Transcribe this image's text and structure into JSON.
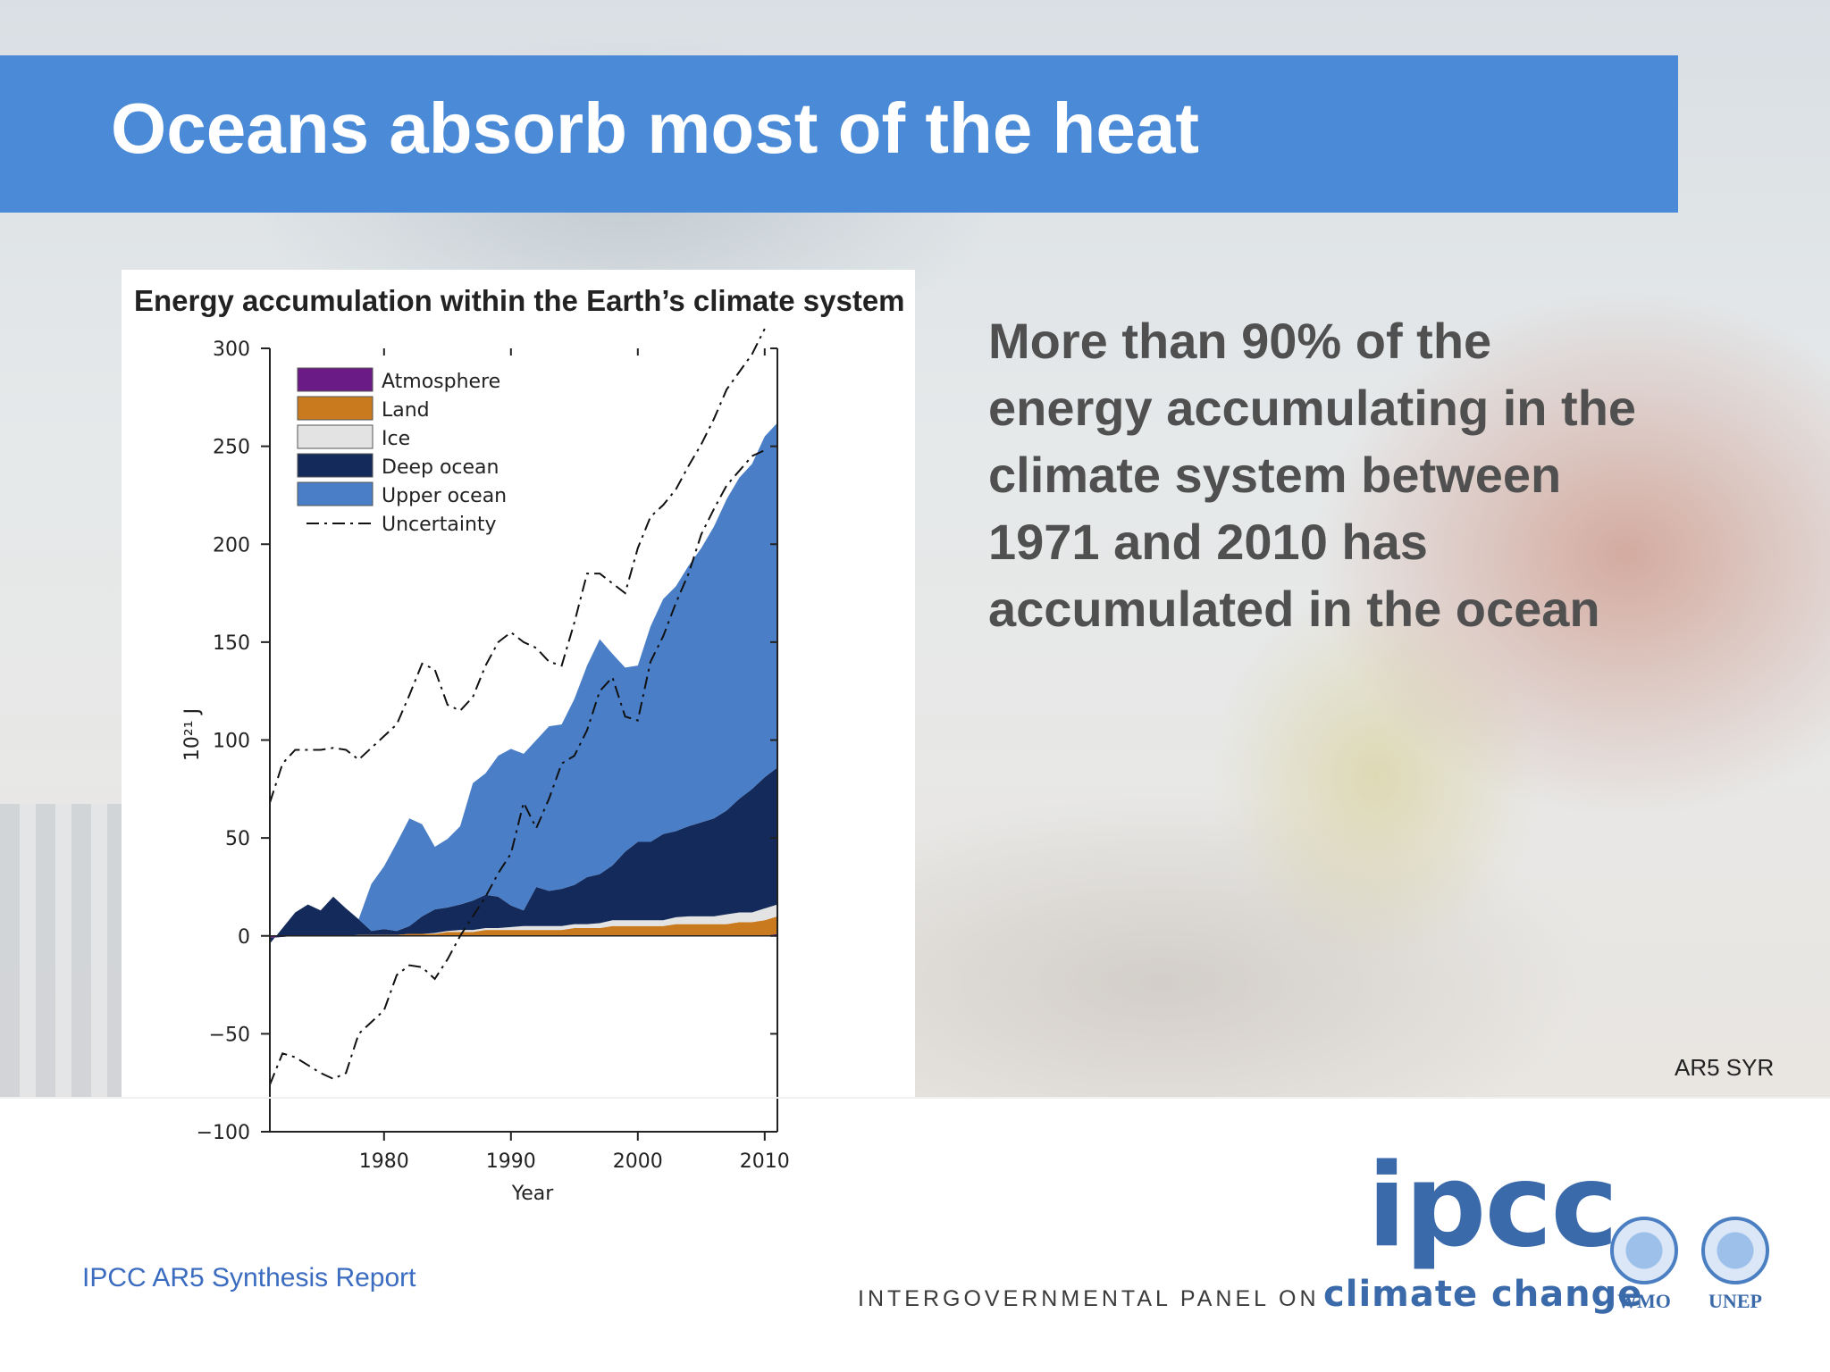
{
  "slide": {
    "title": "Oceans absorb most of the heat",
    "body": "More than 90% of the energy accumulating in the climate system between 1971 and 2010 has accumulated in the ocean",
    "source_tag": "AR5 SYR",
    "footer": "IPCC AR5 Synthesis Report"
  },
  "logo": {
    "word": "ipcc",
    "line_small": "INTERGOVERNMENTAL PANEL ON",
    "line_big": "climate change",
    "partners": [
      "WMO",
      "UNEP"
    ]
  },
  "colors": {
    "header": "#4a8ad6",
    "upper_ocean": "#4a7fc8",
    "deep_ocean": "#142a5a",
    "ice": "#e3e3e3",
    "land": "#c97a1f",
    "atmosphere": "#6a1b86"
  },
  "chart_data": {
    "type": "area",
    "stacked": true,
    "title": "Energy accumulation within the Earth’s climate system",
    "xlabel": "Year",
    "ylabel": "10²¹ J",
    "xlim": [
      1971,
      2011
    ],
    "ylim": [
      -100,
      300
    ],
    "xticks": [
      1980,
      1990,
      2000,
      2010
    ],
    "yticks": [
      -100,
      -50,
      0,
      50,
      100,
      150,
      200,
      250,
      300
    ],
    "legend_position": "top-left",
    "x": [
      1971,
      1973,
      1974,
      1975,
      1976,
      1977,
      1978,
      1979,
      1980,
      1981,
      1982,
      1983,
      1984,
      1985,
      1986,
      1987,
      1988,
      1989,
      1990,
      1991,
      1992,
      1993,
      1994,
      1995,
      1996,
      1997,
      1998,
      1999,
      2000,
      2001,
      2002,
      2003,
      2004,
      2005,
      2006,
      2007,
      2008,
      2009,
      2010,
      2011
    ],
    "series": [
      {
        "name": "Atmosphere",
        "color": "#6a1b86",
        "values": [
          -1,
          0,
          0,
          0,
          0,
          0,
          0,
          0,
          0,
          0,
          0,
          0,
          0,
          0,
          0,
          0,
          0,
          0,
          0,
          0,
          0,
          0,
          0,
          0,
          0,
          0,
          0,
          0,
          0,
          0,
          0,
          0,
          0,
          0,
          0,
          0,
          0,
          0,
          0,
          1
        ]
      },
      {
        "name": "Land",
        "color": "#c97a1f",
        "values": [
          0,
          0,
          0,
          0,
          0,
          0,
          0.5,
          0.5,
          0.5,
          0.5,
          1,
          1,
          1,
          2,
          2,
          2,
          3,
          3,
          3,
          3,
          3,
          3,
          3,
          4,
          4,
          4,
          5,
          5,
          5,
          5,
          5,
          6,
          6,
          6,
          6,
          6,
          7,
          7,
          8,
          9
        ]
      },
      {
        "name": "Ice",
        "color": "#e3e3e3",
        "values": [
          0,
          0,
          0,
          0,
          0,
          0,
          0,
          0,
          0,
          0,
          0,
          0,
          0.5,
          0.5,
          1,
          1,
          1,
          1,
          1.5,
          2,
          2,
          2,
          2,
          2,
          2,
          2.5,
          3,
          3,
          3,
          3,
          3,
          3.5,
          4,
          4,
          4,
          5,
          5,
          5,
          6,
          6
        ]
      },
      {
        "name": "Deep ocean",
        "color": "#142a5a",
        "values": [
          -3,
          12,
          16,
          13,
          20,
          14,
          8,
          2,
          3,
          2,
          4,
          9,
          12,
          12,
          13,
          15,
          17,
          16,
          11,
          8,
          20,
          18,
          19,
          20,
          24,
          25,
          28,
          35,
          40,
          40,
          44,
          44,
          46,
          48,
          50,
          53,
          58,
          63,
          67,
          70
        ]
      },
      {
        "name": "Upper ocean",
        "color": "#4a7fc8",
        "values": [
          0,
          0,
          0,
          0,
          0,
          0,
          0,
          24,
          32,
          45,
          55,
          47,
          32,
          35,
          40,
          60,
          62,
          72,
          80,
          80,
          75,
          84,
          84,
          95,
          108,
          120,
          108,
          94,
          90,
          110,
          120,
          125,
          133,
          140,
          149,
          159,
          164,
          166,
          174,
          176
        ]
      },
      {
        "name": "Uncertainty",
        "style": "dash-dot",
        "upper": [
          68,
          88,
          95,
          95,
          96,
          95,
          90,
          102,
          108,
          123,
          139,
          136,
          118,
          115,
          122,
          138,
          150,
          155,
          150,
          147,
          140,
          138,
          160,
          185,
          185,
          180,
          175,
          198,
          214,
          220,
          228,
          240,
          251,
          264,
          279,
          297,
          310
        ],
        "lower": [
          -76,
          -60,
          -62,
          -70,
          -73,
          -70,
          -50,
          -38,
          -20,
          -15,
          -16,
          -22,
          -12,
          0,
          10,
          20,
          32,
          42,
          68,
          55,
          70,
          88,
          92,
          105,
          125,
          132,
          112,
          110,
          140,
          153,
          170,
          185,
          205,
          218,
          230,
          245,
          248
        ],
        "x": [
          1971,
          1972,
          1973,
          1975,
          1976,
          1977,
          1978,
          1980,
          1981,
          1982,
          1983,
          1984,
          1985,
          1986,
          1987,
          1988,
          1989,
          1990,
          1991,
          1992,
          1993,
          1994,
          1995,
          1996,
          1997,
          1998,
          1999,
          2000,
          2001,
          2002,
          2003,
          2004,
          2005,
          2006,
          2007,
          2009,
          2010
        ]
      }
    ]
  }
}
